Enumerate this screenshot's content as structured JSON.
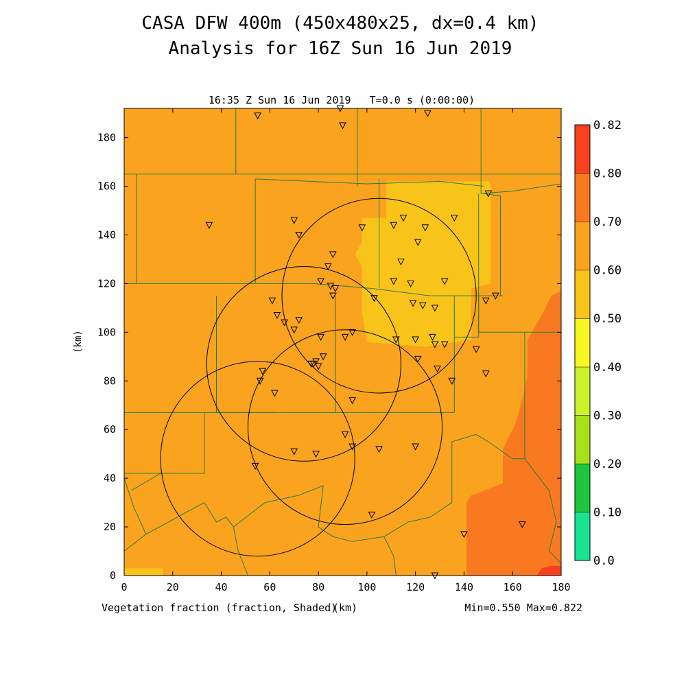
{
  "header": {
    "title_line1": "CASA DFW 400m (450x480x25, dx=0.4 km)",
    "title_line2": "Analysis for 16Z Sun 16 Jun 2019"
  },
  "plot": {
    "subtitle": "16:35 Z Sun 16 Jun 2019   T=0.0 s (0:00:00)",
    "x_label": "(km)",
    "y_label": "(km)",
    "footer_left": "Vegetation fraction (fraction, Shaded)",
    "footer_right": "Min=0.550 Max=0.822",
    "x_range": [
      0,
      180
    ],
    "y_range": [
      0,
      192
    ],
    "x_ticks": [
      "0",
      "20",
      "40",
      "60",
      "80",
      "100",
      "120",
      "140",
      "160",
      "180"
    ],
    "y_ticks": [
      "0",
      "20",
      "40",
      "60",
      "80",
      "100",
      "120",
      "140",
      "160",
      "180"
    ]
  },
  "field_regions": [
    {
      "level": "0.50-0.60",
      "color": "#f9c41a",
      "poly": [
        [
          98,
          147
        ],
        [
          108,
          147
        ],
        [
          108,
          162
        ],
        [
          150,
          162
        ],
        [
          151,
          160
        ],
        [
          151,
          120
        ],
        [
          143,
          118
        ],
        [
          143,
          97
        ],
        [
          124,
          94
        ],
        [
          100,
          96
        ],
        [
          98,
          108
        ],
        [
          98,
          127
        ],
        [
          95,
          132
        ],
        [
          98,
          137
        ]
      ]
    },
    {
      "level": "0.50-0.60",
      "color": "#f9c41a",
      "poly": [
        [
          0,
          0
        ],
        [
          16,
          0
        ],
        [
          16,
          3
        ],
        [
          0,
          3
        ]
      ]
    },
    {
      "level": "0.70-0.80",
      "color": "#f97920",
      "poly": [
        [
          180,
          117
        ],
        [
          176,
          115
        ],
        [
          172,
          107
        ],
        [
          168,
          100
        ],
        [
          166,
          96
        ],
        [
          166,
          82
        ],
        [
          164,
          72
        ],
        [
          161,
          62
        ],
        [
          157,
          54
        ],
        [
          156,
          52
        ],
        [
          156,
          38
        ],
        [
          151,
          36
        ],
        [
          146,
          34
        ],
        [
          143,
          33
        ],
        [
          141,
          30
        ],
        [
          141,
          0
        ],
        [
          180,
          0
        ]
      ]
    },
    {
      "level": "0.80-0.82",
      "color": "#f9401e",
      "poly": [
        [
          170,
          0
        ],
        [
          180,
          0
        ],
        [
          180,
          4
        ],
        [
          176,
          4
        ],
        [
          172,
          3
        ]
      ]
    }
  ],
  "boundaries": [
    [
      [
        0,
        165
      ],
      [
        180,
        165
      ]
    ],
    [
      [
        0,
        67
      ],
      [
        62,
        67
      ]
    ],
    [
      [
        0,
        192
      ],
      [
        180,
        192
      ]
    ],
    [
      [
        46,
        192
      ],
      [
        46,
        165
      ]
    ],
    [
      [
        96,
        192
      ],
      [
        96,
        160
      ]
    ],
    [
      [
        147,
        192
      ],
      [
        147,
        157
      ]
    ],
    [
      [
        147,
        157
      ],
      [
        160,
        158
      ],
      [
        180,
        161
      ]
    ],
    [
      [
        5,
        165
      ],
      [
        5,
        120
      ]
    ],
    [
      [
        0,
        120
      ],
      [
        78,
        120
      ]
    ],
    [
      [
        78,
        120
      ],
      [
        102,
        118
      ],
      [
        126,
        115
      ]
    ],
    [
      [
        126,
        115
      ],
      [
        150,
        115
      ],
      [
        156,
        115
      ]
    ],
    [
      [
        54,
        163
      ],
      [
        54,
        120
      ]
    ],
    [
      [
        54,
        163
      ],
      [
        100,
        161
      ],
      [
        130,
        162
      ],
      [
        148,
        160
      ]
    ],
    [
      [
        105,
        163
      ],
      [
        105,
        118
      ]
    ],
    [
      [
        136,
        115
      ],
      [
        136,
        67
      ]
    ],
    [
      [
        38,
        115
      ],
      [
        38,
        67
      ]
    ],
    [
      [
        87,
        115
      ],
      [
        87,
        67
      ]
    ],
    [
      [
        38,
        67
      ],
      [
        136,
        67
      ]
    ],
    [
      [
        136,
        98
      ],
      [
        146,
        98
      ],
      [
        146,
        116
      ]
    ],
    [
      [
        146,
        100
      ],
      [
        180,
        100
      ]
    ],
    [
      [
        146,
        157
      ],
      [
        146,
        100
      ]
    ],
    [
      [
        148,
        157
      ],
      [
        155,
        156
      ],
      [
        155,
        115
      ]
    ],
    [
      [
        165,
        100
      ],
      [
        165,
        48
      ]
    ],
    [
      [
        0,
        67
      ],
      [
        0,
        40
      ]
    ],
    [
      [
        33,
        67
      ],
      [
        33,
        42
      ]
    ],
    [
      [
        0,
        42
      ],
      [
        33,
        42
      ]
    ],
    [
      [
        3,
        35
      ],
      [
        15,
        42
      ]
    ],
    [
      [
        33,
        30
      ],
      [
        38,
        22
      ],
      [
        42,
        24
      ],
      [
        45,
        20
      ]
    ],
    [
      [
        33,
        30
      ],
      [
        9,
        17
      ],
      [
        0,
        10
      ]
    ],
    [
      [
        9,
        17
      ],
      [
        4,
        28
      ],
      [
        0,
        40
      ]
    ],
    [
      [
        45,
        20
      ],
      [
        58,
        30
      ],
      [
        72,
        33
      ],
      [
        82,
        37
      ]
    ],
    [
      [
        45,
        20
      ],
      [
        47,
        10
      ],
      [
        51,
        0
      ]
    ],
    [
      [
        82,
        37
      ],
      [
        80,
        20
      ],
      [
        86,
        16
      ],
      [
        94,
        14
      ]
    ],
    [
      [
        94,
        14
      ],
      [
        107,
        16
      ],
      [
        117,
        22
      ],
      [
        126,
        24
      ],
      [
        135,
        30
      ]
    ],
    [
      [
        107,
        16
      ],
      [
        111,
        8
      ],
      [
        112,
        0
      ]
    ],
    [
      [
        135,
        30
      ],
      [
        135,
        55
      ],
      [
        145,
        58
      ],
      [
        150,
        55
      ],
      [
        160,
        48
      ],
      [
        165,
        48
      ]
    ],
    [
      [
        165,
        48
      ],
      [
        175,
        35
      ],
      [
        178,
        22
      ],
      [
        175,
        10
      ],
      [
        180,
        5
      ]
    ],
    [
      [
        0,
        0
      ],
      [
        180,
        0
      ]
    ]
  ],
  "circles": [
    {
      "cx": 105,
      "cy": 115,
      "r": 40
    },
    {
      "cx": 74,
      "cy": 87,
      "r": 40
    },
    {
      "cx": 91,
      "cy": 61,
      "r": 40
    },
    {
      "cx": 55,
      "cy": 48,
      "r": 40
    }
  ],
  "stations": [
    [
      55,
      189
    ],
    [
      89,
      192
    ],
    [
      90,
      185
    ],
    [
      125,
      190
    ],
    [
      35,
      144
    ],
    [
      70,
      146
    ],
    [
      72,
      140
    ],
    [
      98,
      143
    ],
    [
      111,
      144
    ],
    [
      115,
      147
    ],
    [
      124,
      143
    ],
    [
      136,
      147
    ],
    [
      121,
      137
    ],
    [
      86,
      132
    ],
    [
      114,
      129
    ],
    [
      84,
      127
    ],
    [
      81,
      121
    ],
    [
      85,
      119
    ],
    [
      87,
      118
    ],
    [
      111,
      121
    ],
    [
      118,
      120
    ],
    [
      132,
      121
    ],
    [
      86,
      115
    ],
    [
      103,
      114
    ],
    [
      150,
      157
    ],
    [
      119,
      112
    ],
    [
      123,
      111
    ],
    [
      128,
      110
    ],
    [
      149,
      113
    ],
    [
      153,
      115
    ],
    [
      63,
      107
    ],
    [
      61,
      113
    ],
    [
      66,
      104
    ],
    [
      72,
      105
    ],
    [
      70,
      101
    ],
    [
      81,
      98
    ],
    [
      91,
      98
    ],
    [
      94,
      100
    ],
    [
      112,
      97
    ],
    [
      120,
      97
    ],
    [
      127,
      98
    ],
    [
      128,
      95
    ],
    [
      132,
      95
    ],
    [
      145,
      93
    ],
    [
      121,
      89
    ],
    [
      78,
      87
    ],
    [
      77,
      87
    ],
    [
      79,
      88
    ],
    [
      82,
      90
    ],
    [
      129,
      85
    ],
    [
      149,
      83
    ],
    [
      57,
      84
    ],
    [
      56,
      80
    ],
    [
      135,
      80
    ],
    [
      62,
      75
    ],
    [
      94,
      72
    ],
    [
      91,
      58
    ],
    [
      94,
      53
    ],
    [
      105,
      52
    ],
    [
      120,
      53
    ],
    [
      70,
      51
    ],
    [
      79,
      50
    ],
    [
      54,
      45
    ],
    [
      102,
      25
    ],
    [
      140,
      17
    ],
    [
      164,
      21
    ],
    [
      128,
      0
    ],
    [
      80,
      86
    ]
  ],
  "colorbar": {
    "labels": [
      "0.0",
      "0.10",
      "0.20",
      "0.30",
      "0.40",
      "0.50",
      "0.60",
      "0.70",
      "0.80",
      "0.82"
    ],
    "colors": [
      "#1ae391",
      "#1ec63f",
      "#a6e11b",
      "#ccf22b",
      "#f7f723",
      "#f9c41a",
      "#f9a31e",
      "#f97920",
      "#f9401e"
    ]
  }
}
